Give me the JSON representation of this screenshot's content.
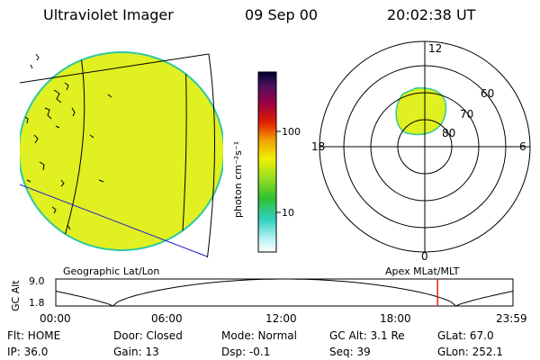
{
  "header": {
    "title": "Ultraviolet Imager",
    "date": "09 Sep 00",
    "time": "20:02:38 UT"
  },
  "colors": {
    "aurora_fill": "#e0f020",
    "aurora_edge": "#30c8a0",
    "grid_line": "#000000",
    "geo_line": "#2020d0",
    "marker": "#e02020"
  },
  "colorbar": {
    "unit_label": "photon cm⁻²s⁻¹",
    "ticks": [
      "100",
      "10"
    ],
    "scale": "log"
  },
  "polar_plot": {
    "mlt_labels": {
      "top": "12",
      "right": "6",
      "bottom": "0",
      "left": "18"
    },
    "lat_labels": [
      "60",
      "70",
      "80"
    ]
  },
  "timeline": {
    "left_label": "Geographic Lat/Lon",
    "right_label": "Apex MLat/MLT",
    "axis_label": "GC Alt",
    "y_max": "9.0",
    "y_min": "1.8",
    "x_ticks": [
      "00:00",
      "06:00",
      "12:00",
      "18:00",
      "23:59"
    ],
    "current_time_hours": 20.04
  },
  "status": {
    "row1": {
      "flt": "Flt: HOME",
      "door": "Door: Closed",
      "mode": "Mode: Normal",
      "gc_alt": "GC Alt: 3.1 Re",
      "glat": "GLat:  67.0"
    },
    "row2": {
      "ip": "IP: 36.0",
      "gain": "Gain: 13",
      "dsp": "Dsp:   -0.1",
      "seq": "Seq: 39",
      "glon": "GLon: 252.1"
    }
  }
}
